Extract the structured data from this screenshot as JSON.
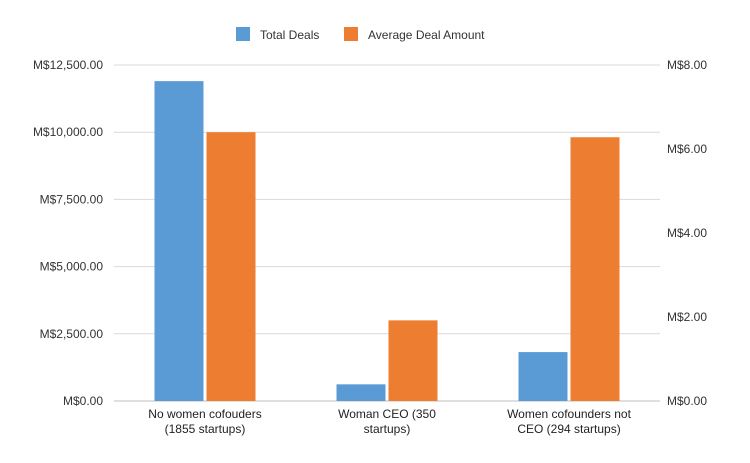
{
  "chart_data": {
    "type": "bar",
    "categories": [
      [
        "No women cofouders",
        "(1855 startups)"
      ],
      [
        "Woman CEO (350",
        "startups)"
      ],
      [
        "Women cofounders not",
        "CEO (294 startups)"
      ]
    ],
    "series": [
      {
        "name": "Total Deals",
        "axis": "left",
        "color": "#5b9bd5",
        "values": [
          11900,
          620,
          1820
        ]
      },
      {
        "name": "Average Deal Amount",
        "axis": "right",
        "color": "#ed7d31",
        "values": [
          6.4,
          1.92,
          6.28
        ]
      }
    ],
    "left_axis": {
      "min": 0,
      "max": 12500,
      "ticks": [
        0,
        2500,
        5000,
        7500,
        10000,
        12500
      ],
      "tick_labels": [
        "M$0.00",
        "M$2,500.00",
        "M$5,000.00",
        "M$7,500.00",
        "M$10,000.00",
        "M$12,500.00"
      ]
    },
    "right_axis": {
      "min": 0,
      "max": 8,
      "ticks": [
        0,
        2,
        4,
        6,
        8
      ],
      "tick_labels": [
        "M$0.00",
        "M$2.00",
        "M$4.00",
        "M$6.00",
        "M$8.00"
      ]
    },
    "grid": true,
    "legend_position": "top-center"
  }
}
